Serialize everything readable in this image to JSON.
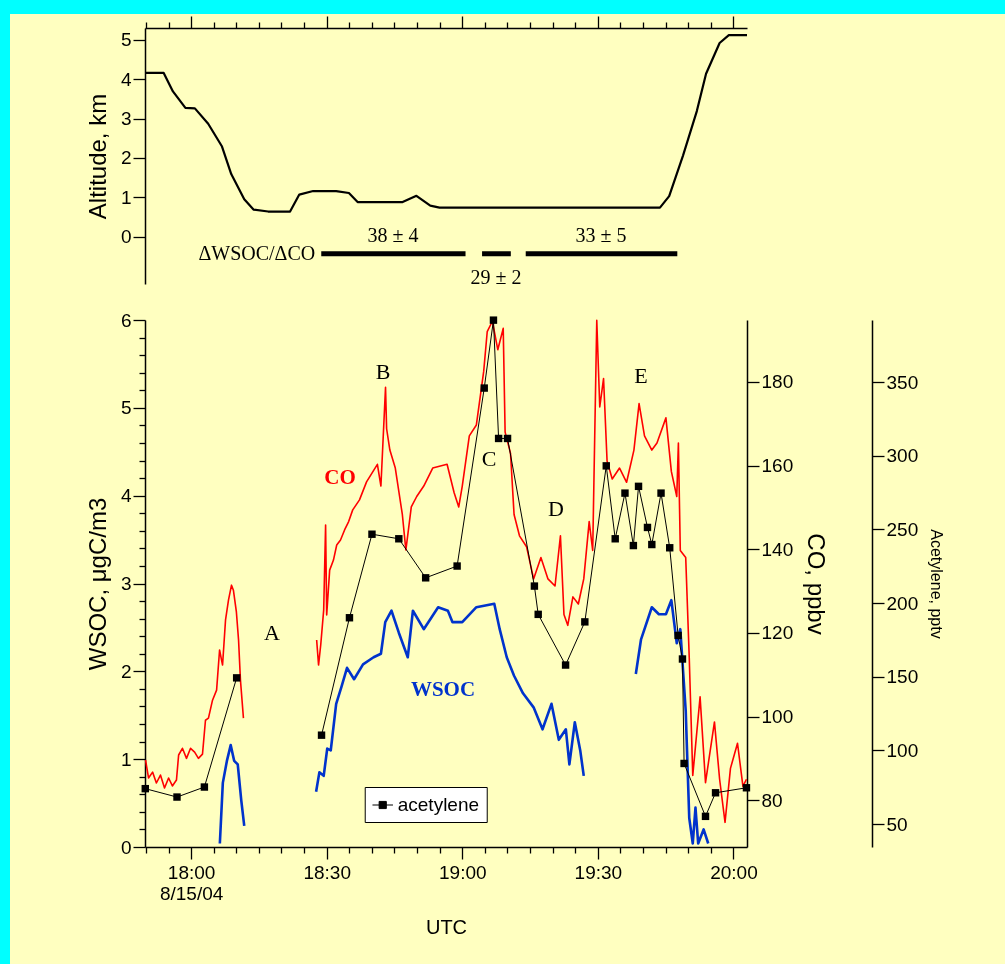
{
  "chart_data": [
    {
      "type": "line",
      "ylabel": "Altitude, km",
      "tick_labels": "y",
      "xlim": [
        17.83,
        20.05
      ],
      "ylim": [
        -1.2,
        5.3
      ],
      "yticks": [
        0,
        1,
        2,
        3,
        4,
        5
      ],
      "xticks": [
        {
          "value": 17.8333,
          "label": null
        },
        {
          "value": 17.9167,
          "label": null
        },
        18,
        {
          "value": 18.0833,
          "label": null
        },
        {
          "value": 18.1667,
          "label": null
        },
        {
          "value": 18.25,
          "label": null
        },
        {
          "value": 18.3333,
          "label": null
        },
        {
          "value": 18.4167,
          "label": null
        },
        18.5,
        {
          "value": 18.5833,
          "label": null
        },
        {
          "value": 18.6667,
          "label": null
        },
        {
          "value": 18.75,
          "label": null
        },
        {
          "value": 18.8333,
          "label": null
        },
        {
          "value": 18.9167,
          "label": null
        },
        19,
        {
          "value": 19.0833,
          "label": null
        },
        {
          "value": 19.1667,
          "label": null
        },
        {
          "value": 19.25,
          "label": null
        },
        {
          "value": 19.3333,
          "label": null
        },
        {
          "value": 19.4167,
          "label": null
        },
        19.5,
        {
          "value": 19.5833,
          "label": null
        },
        {
          "value": 19.6667,
          "label": null
        },
        {
          "value": 19.75,
          "label": null
        },
        {
          "value": 19.8333,
          "label": null
        },
        {
          "value": 19.9167,
          "label": null
        },
        20
      ],
      "series": [
        {
          "color": "#000000",
          "x": [
            17.831,
            17.899,
            17.933,
            17.979,
            18.014,
            18.063,
            18.114,
            18.148,
            18.196,
            18.23,
            18.284,
            18.365,
            18.399,
            18.45,
            18.535,
            18.582,
            18.614,
            18.78,
            18.831,
            18.882,
            18.916,
            19.729,
            19.763,
            19.814,
            19.865,
            19.899,
            19.949,
            19.983,
            20.05
          ],
          "values": [
            4.16,
            4.16,
            3.69,
            3.27,
            3.26,
            2.87,
            2.29,
            1.59,
            0.95,
            0.69,
            0.64,
            0.64,
            1.07,
            1.16,
            1.16,
            1.11,
            0.88,
            0.88,
            1.04,
            0.79,
            0.74,
            0.74,
            1.03,
            2.06,
            3.19,
            4.14,
            4.92,
            5.12,
            5.12
          ]
        },
        {
          "name": "ΔWSOC/ΔCO",
          "color": "#000000",
          "x": [
            18.48,
            19.012,
            19.04,
            19.073,
            19.179,
            19.2,
            19.234,
            19.793
          ],
          "values": [
            -0.43,
            -0.43,
            null,
            -0.43,
            -0.43,
            null,
            -0.43,
            -0.43
          ]
        }
      ],
      "annotations": [
        "38 ± 4",
        "29 ± 2",
        "33 ± 5"
      ]
    },
    {
      "type": "line",
      "xlabel": "UTC",
      "ylabel": "WSOC, μgC/m3",
      "y2label": "CO, ppbv",
      "y3label": "Acetylene, pptv",
      "legend": "bottom",
      "xlim": [
        17.83,
        20.05
      ],
      "ylim": [
        0,
        6
      ],
      "y2lim": [
        68.8,
        194.8
      ],
      "y3lim": [
        34.4,
        392.1
      ],
      "yticks": [
        0,
        {
          "value": 0.2,
          "label": null
        },
        {
          "value": 0.4,
          "label": null
        },
        {
          "value": 0.6,
          "label": null
        },
        {
          "value": 0.8,
          "label": null
        },
        1,
        {
          "value": 1.2,
          "label": null
        },
        {
          "value": 1.4,
          "label": null
        },
        {
          "value": 1.6,
          "label": null
        },
        {
          "value": 1.8,
          "label": null
        },
        2,
        {
          "value": 2.2,
          "label": null
        },
        {
          "value": 2.4,
          "label": null
        },
        {
          "value": 2.6,
          "label": null
        },
        {
          "value": 2.8,
          "label": null
        },
        3,
        {
          "value": 3.2,
          "label": null
        },
        {
          "value": 3.4,
          "label": null
        },
        {
          "value": 3.6,
          "label": null
        },
        {
          "value": 3.8,
          "label": null
        },
        4,
        {
          "value": 4.2,
          "label": null
        },
        {
          "value": 4.4,
          "label": null
        },
        {
          "value": 4.6,
          "label": null
        },
        {
          "value": 4.8,
          "label": null
        },
        5,
        {
          "value": 5.2,
          "label": null
        },
        {
          "value": 5.4,
          "label": null
        },
        {
          "value": 5.6,
          "label": null
        },
        {
          "value": 5.8,
          "label": null
        },
        6
      ],
      "y2ticks": [
        80,
        100,
        120,
        140,
        160,
        180
      ],
      "y3ticks": [
        50,
        100,
        150,
        200,
        250,
        300,
        350
      ],
      "xticks": [
        {
          "value": 17.8333,
          "label": null
        },
        {
          "value": 17.9167,
          "label": null
        },
        {
          "value": 18,
          "label": "18:00\n8/15/04"
        },
        {
          "value": 18.0833,
          "label": null
        },
        {
          "value": 18.1667,
          "label": null
        },
        {
          "value": 18.25,
          "label": null
        },
        {
          "value": 18.3333,
          "label": null
        },
        {
          "value": 18.4167,
          "label": null
        },
        {
          "value": 18.5,
          "label": "18:30"
        },
        {
          "value": 18.5833,
          "label": null
        },
        {
          "value": 18.6667,
          "label": null
        },
        {
          "value": 18.75,
          "label": null
        },
        {
          "value": 18.8333,
          "label": null
        },
        {
          "value": 18.9167,
          "label": null
        },
        {
          "value": 19,
          "label": "19:00"
        },
        {
          "value": 19.0833,
          "label": null
        },
        {
          "value": 19.1667,
          "label": null
        },
        {
          "value": 19.25,
          "label": null
        },
        {
          "value": 19.3333,
          "label": null
        },
        {
          "value": 19.4167,
          "label": null
        },
        {
          "value": 19.5,
          "label": "19:30"
        },
        {
          "value": 19.5833,
          "label": null
        },
        {
          "value": 19.6667,
          "label": null
        },
        {
          "value": 19.75,
          "label": null
        },
        {
          "value": 19.8333,
          "label": null
        },
        {
          "value": 19.9167,
          "label": null
        },
        {
          "value": 20,
          "label": "20:00"
        }
      ],
      "series": [
        {
          "name": "CO",
          "color": "#ff0000",
          "axis": "y2",
          "x": [
            17.832,
            17.843,
            17.858,
            17.872,
            17.887,
            17.902,
            17.917,
            17.931,
            17.946,
            17.954,
            17.968,
            17.983,
            17.998,
            18.013,
            18.027,
            18.042,
            18.053,
            18.064,
            18.079,
            18.094,
            18.105,
            18.116,
            18.127,
            18.138,
            18.149,
            18.156,
            18.167,
            18.175,
            18.182,
            18.193,
            18.3,
            18.463,
            18.47,
            18.478,
            18.489,
            18.496,
            18.5,
            18.511,
            18.525,
            18.537,
            18.551,
            18.566,
            18.581,
            18.596,
            18.621,
            18.647,
            18.687,
            18.7,
            18.717,
            18.721,
            18.733,
            18.753,
            18.779,
            18.792,
            18.812,
            18.832,
            18.858,
            18.891,
            18.944,
            18.97,
            18.987,
            19.0,
            19.026,
            19.052,
            19.079,
            19.092,
            19.111,
            19.131,
            19.151,
            19.158,
            19.178,
            19.191,
            19.211,
            19.237,
            19.263,
            19.29,
            19.316,
            19.342,
            19.362,
            19.375,
            19.389,
            19.408,
            19.428,
            19.448,
            19.468,
            19.481,
            19.496,
            19.507,
            19.521,
            19.534,
            19.553,
            19.58,
            19.606,
            19.633,
            19.652,
            19.672,
            19.699,
            19.718,
            19.751,
            19.771,
            19.791,
            19.797,
            19.804,
            19.824,
            19.837,
            19.85,
            19.877,
            19.897,
            19.93,
            19.949,
            19.969,
            19.989,
            20.015,
            20.035,
            20.048
          ],
          "values": [
            89.6,
            85.3,
            86.7,
            84.1,
            86.0,
            82.9,
            85.3,
            83.4,
            84.8,
            90.8,
            92.4,
            90.0,
            92.4,
            91.5,
            90.0,
            91.0,
            99.1,
            99.6,
            103.9,
            106.3,
            115.9,
            112.3,
            123.1,
            127.9,
            131.4,
            130.2,
            125.0,
            118.3,
            108.7,
            99.6,
            null,
            118.3,
            112.3,
            117.1,
            125.5,
            145.8,
            124.3,
            135.0,
            137.4,
            141.0,
            142.2,
            144.6,
            146.6,
            149.4,
            151.8,
            156.1,
            160.3,
            155.1,
            178.7,
            168.8,
            163.7,
            159.4,
            148.3,
            139.8,
            150.1,
            152.6,
            155.1,
            159.4,
            160.3,
            153.5,
            150.1,
            155.1,
            167.1,
            169.7,
            182.5,
            192.0,
            194.5,
            187.7,
            192.8,
            168.0,
            162.9,
            148.3,
            143.2,
            140.6,
            132.9,
            138.0,
            132.9,
            131.2,
            143.2,
            124.4,
            121.8,
            128.6,
            126.9,
            132.9,
            146.6,
            139.7,
            194.7,
            174.0,
            180.8,
            161.1,
            156.8,
            159.4,
            156.0,
            163.7,
            174.8,
            167.1,
            163.7,
            165.4,
            171.4,
            158.6,
            152.6,
            165.4,
            139.7,
            138.0,
            114.1,
            85.9,
            104.7,
            84.2,
            98.7,
            85.0,
            74.7,
            87.6,
            93.6,
            83.3,
            85.0
          ]
        },
        {
          "name": "WSOC",
          "color": "#0033cc",
          "x": [
            18.106,
            18.117,
            18.132,
            18.146,
            18.159,
            18.172,
            18.185,
            18.196,
            18.3,
            18.461,
            18.473,
            18.489,
            18.502,
            18.515,
            18.535,
            18.555,
            18.575,
            18.601,
            18.634,
            18.673,
            18.7,
            18.716,
            18.739,
            18.766,
            18.799,
            18.818,
            18.858,
            18.911,
            18.947,
            18.964,
            19.0,
            19.052,
            19.118,
            19.138,
            19.164,
            19.191,
            19.224,
            19.263,
            19.296,
            19.329,
            19.356,
            19.382,
            19.395,
            19.415,
            19.435,
            19.448,
            19.5,
            19.64,
            19.659,
            19.699,
            19.725,
            19.751,
            19.771,
            19.791,
            19.804,
            19.824,
            19.837,
            19.85,
            19.86,
            19.87,
            19.89,
            19.907
          ],
          "values": [
            0.04,
            0.73,
            0.98,
            1.16,
            0.98,
            0.94,
            0.53,
            0.24,
            null,
            0.63,
            0.85,
            0.81,
            1.12,
            1.1,
            1.63,
            1.83,
            2.04,
            1.91,
            2.08,
            2.16,
            2.2,
            2.56,
            2.69,
            2.44,
            2.16,
            2.69,
            2.48,
            2.73,
            2.69,
            2.56,
            2.56,
            2.73,
            2.77,
            2.48,
            2.16,
            1.95,
            1.75,
            1.59,
            1.34,
            1.63,
            1.22,
            1.34,
            0.94,
            1.42,
            1.1,
            0.81,
            null,
            1.97,
            2.36,
            2.73,
            2.65,
            2.65,
            2.81,
            2.32,
            2.48,
            1.55,
            0.33,
            0.04,
            0.45,
            0.04,
            0.2,
            0.04
          ]
        },
        {
          "name": "acetylene",
          "color": "#000000",
          "axis": "y3",
          "marker": "square",
          "x": [
            17.831,
            17.948,
            18.049,
            18.168,
            18.3,
            18.481,
            18.584,
            18.667,
            18.766,
            18.865,
            18.981,
            19.081,
            19.115,
            19.134,
            19.167,
            19.266,
            19.28,
            19.381,
            19.452,
            19.531,
            19.564,
            19.6,
            19.631,
            19.65,
            19.683,
            19.699,
            19.733,
            19.765,
            19.796,
            19.812,
            19.818,
            19.897,
            19.934,
            20.048
          ],
          "values": [
            74.0,
            68.3,
            75.1,
            149.2,
            null,
            110.3,
            190.0,
            246.7,
            243.6,
            217.1,
            225.1,
            345.9,
            392.0,
            311.7,
            311.7,
            211.5,
            192.3,
            157.9,
            187.2,
            293.1,
            243.6,
            274.6,
            239.0,
            279.2,
            251.3,
            239.7,
            274.6,
            237.5,
            178.0,
            162.0,
            91.1,
            55.2,
            71.2,
            74.6
          ]
        }
      ],
      "annotations": [
        "A",
        "B",
        "C",
        "D",
        "E"
      ]
    }
  ]
}
